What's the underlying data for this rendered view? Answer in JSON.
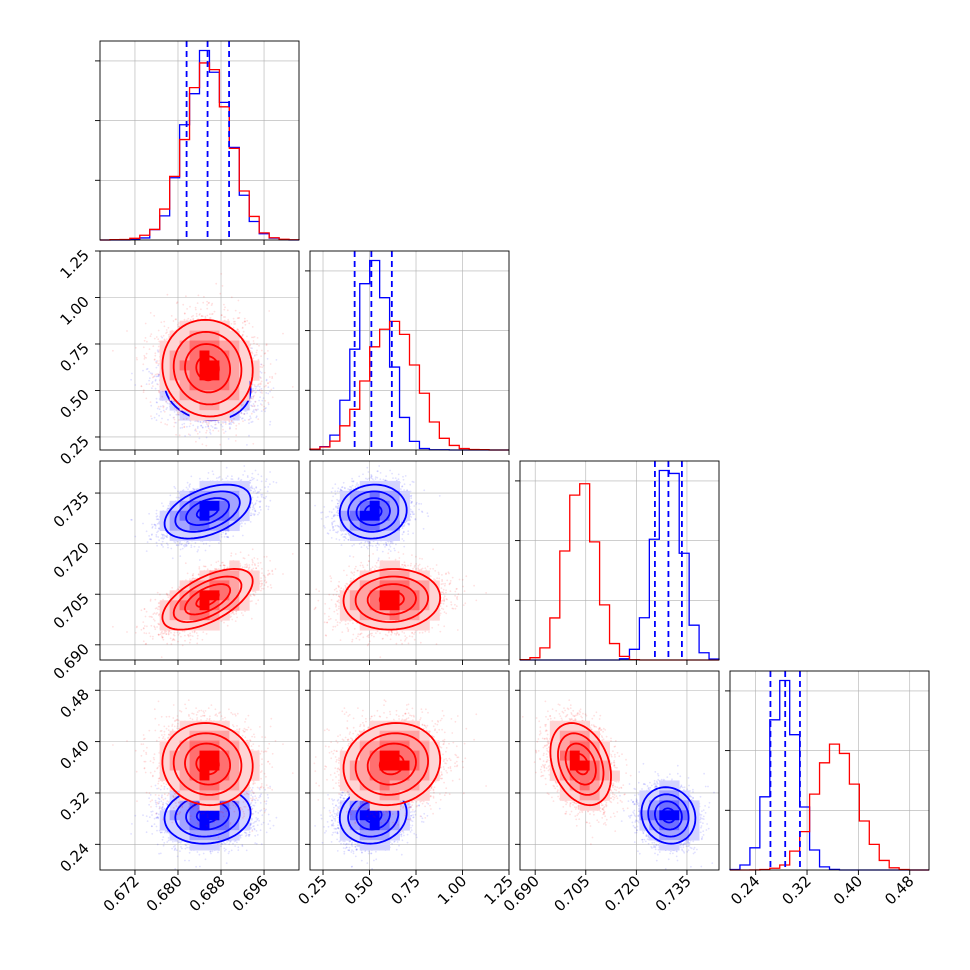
{
  "chart_data": {
    "type": "corner",
    "grid": true,
    "parameters": [
      {
        "ticks": [
          "0.672",
          "0.680",
          "0.688",
          "0.696"
        ],
        "tick_values": [
          0.672,
          0.68,
          0.688,
          0.696
        ],
        "range": [
          0.6655,
          0.7025
        ]
      },
      {
        "ticks": [
          "0.25",
          "0.50",
          "0.75",
          "1.00",
          "1.25"
        ],
        "tick_values": [
          0.25,
          0.5,
          0.75,
          1.0,
          1.25
        ],
        "range": [
          0.18,
          1.25
        ]
      },
      {
        "ticks": [
          "0.690",
          "0.705",
          "0.720",
          "0.735"
        ],
        "tick_values": [
          0.69,
          0.705,
          0.72,
          0.735
        ],
        "range": [
          0.6855,
          0.7445
        ]
      },
      {
        "ticks": [
          "0.24",
          "0.32",
          "0.40",
          "0.48"
        ],
        "tick_values": [
          0.24,
          0.32,
          0.4,
          0.48
        ],
        "range": [
          0.2,
          0.51
        ]
      }
    ],
    "series": [
      {
        "color": "#0000ff",
        "means": [
          0.6855,
          0.52,
          0.7295,
          0.285
        ],
        "sigmas": [
          0.004,
          0.09,
          0.004,
          0.022
        ],
        "correlations": {
          "0-1": -0.1,
          "0-2": 0.45,
          "0-3": 0.1,
          "1-2": 0.05,
          "1-3": 0.1,
          "2-3": -0.1
        },
        "quantiles": [
          [
            0.6816,
            0.6855,
            0.6895
          ],
          [
            0.42,
            0.51,
            0.62
          ],
          [
            0.7255,
            0.7295,
            0.7335
          ],
          [
            0.263,
            0.286,
            0.309
          ]
        ]
      },
      {
        "color": "#ff0000",
        "means": [
          0.6855,
          0.62,
          0.7035,
          0.365
        ],
        "sigmas": [
          0.0042,
          0.13,
          0.0045,
          0.032
        ],
        "correlations": {
          "0-1": -0.05,
          "0-2": 0.6,
          "0-3": -0.05,
          "1-2": 0.05,
          "1-3": 0.1,
          "2-3": -0.3
        }
      }
    ]
  }
}
